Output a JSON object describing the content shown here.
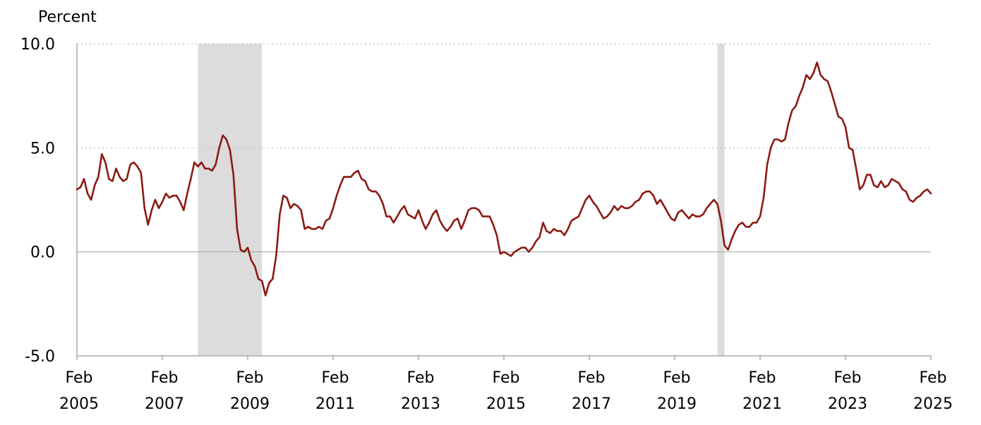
{
  "chart_data": {
    "type": "line",
    "ylabel": "Percent",
    "ylim": [
      -5.0,
      10.0
    ],
    "yticks": [
      {
        "value": 10.0,
        "label": "10.0"
      },
      {
        "value": 5.0,
        "label": "5.0"
      },
      {
        "value": 0.0,
        "label": "0.0"
      },
      {
        "value": -5.0,
        "label": "-5.0"
      }
    ],
    "xlim": [
      "2005-02",
      "2025-02"
    ],
    "xticks": [
      {
        "date": "2005-02",
        "month": "Feb",
        "year": "2005"
      },
      {
        "date": "2007-02",
        "month": "Feb",
        "year": "2007"
      },
      {
        "date": "2009-02",
        "month": "Feb",
        "year": "2009"
      },
      {
        "date": "2011-02",
        "month": "Feb",
        "year": "2011"
      },
      {
        "date": "2013-02",
        "month": "Feb",
        "year": "2013"
      },
      {
        "date": "2015-02",
        "month": "Feb",
        "year": "2015"
      },
      {
        "date": "2017-02",
        "month": "Feb",
        "year": "2017"
      },
      {
        "date": "2019-02",
        "month": "Feb",
        "year": "2019"
      },
      {
        "date": "2021-02",
        "month": "Feb",
        "year": "2021"
      },
      {
        "date": "2023-02",
        "month": "Feb",
        "year": "2023"
      },
      {
        "date": "2025-02",
        "month": "Feb",
        "year": "2025"
      }
    ],
    "grid": true,
    "recessions": [
      {
        "start": "2007-12",
        "end": "2009-06"
      },
      {
        "start": "2020-02",
        "end": "2020-04"
      }
    ],
    "colors": {
      "line": "#8b1a12",
      "recession": "#dcdcdc",
      "grid": "#c8c8c8"
    },
    "series": [
      {
        "x": [
          "2005-02",
          "2005-03",
          "2005-04",
          "2005-05",
          "2005-06",
          "2005-07",
          "2005-08",
          "2005-09",
          "2005-10",
          "2005-11",
          "2005-12",
          "2006-01",
          "2006-02",
          "2006-03",
          "2006-04",
          "2006-05",
          "2006-06",
          "2006-07",
          "2006-08",
          "2006-09",
          "2006-10",
          "2006-11",
          "2006-12",
          "2007-01",
          "2007-02",
          "2007-03",
          "2007-04",
          "2007-05",
          "2007-06",
          "2007-07",
          "2007-08",
          "2007-09",
          "2007-10",
          "2007-11",
          "2007-12",
          "2008-01",
          "2008-02",
          "2008-03",
          "2008-04",
          "2008-05",
          "2008-06",
          "2008-07",
          "2008-08",
          "2008-09",
          "2008-10",
          "2008-11",
          "2008-12",
          "2009-01",
          "2009-02",
          "2009-03",
          "2009-04",
          "2009-05",
          "2009-06",
          "2009-07",
          "2009-08",
          "2009-09",
          "2009-10",
          "2009-11",
          "2009-12",
          "2010-01",
          "2010-02",
          "2010-03",
          "2010-04",
          "2010-05",
          "2010-06",
          "2010-07",
          "2010-08",
          "2010-09",
          "2010-10",
          "2010-11",
          "2010-12",
          "2011-01",
          "2011-02",
          "2011-03",
          "2011-04",
          "2011-05",
          "2011-06",
          "2011-07",
          "2011-08",
          "2011-09",
          "2011-10",
          "2011-11",
          "2011-12",
          "2012-01",
          "2012-02",
          "2012-03",
          "2012-04",
          "2012-05",
          "2012-06",
          "2012-07",
          "2012-08",
          "2012-09",
          "2012-10",
          "2012-11",
          "2012-12",
          "2013-01",
          "2013-02",
          "2013-03",
          "2013-04",
          "2013-05",
          "2013-06",
          "2013-07",
          "2013-08",
          "2013-09",
          "2013-10",
          "2013-11",
          "2013-12",
          "2014-01",
          "2014-02",
          "2014-03",
          "2014-04",
          "2014-05",
          "2014-06",
          "2014-07",
          "2014-08",
          "2014-09",
          "2014-10",
          "2014-11",
          "2014-12",
          "2015-01",
          "2015-02",
          "2015-03",
          "2015-04",
          "2015-05",
          "2015-06",
          "2015-07",
          "2015-08",
          "2015-09",
          "2015-10",
          "2015-11",
          "2015-12",
          "2016-01",
          "2016-02",
          "2016-03",
          "2016-04",
          "2016-05",
          "2016-06",
          "2016-07",
          "2016-08",
          "2016-09",
          "2016-10",
          "2016-11",
          "2016-12",
          "2017-01",
          "2017-02",
          "2017-03",
          "2017-04",
          "2017-05",
          "2017-06",
          "2017-07",
          "2017-08",
          "2017-09",
          "2017-10",
          "2017-11",
          "2017-12",
          "2018-01",
          "2018-02",
          "2018-03",
          "2018-04",
          "2018-05",
          "2018-06",
          "2018-07",
          "2018-08",
          "2018-09",
          "2018-10",
          "2018-11",
          "2018-12",
          "2019-01",
          "2019-02",
          "2019-03",
          "2019-04",
          "2019-05",
          "2019-06",
          "2019-07",
          "2019-08",
          "2019-09",
          "2019-10",
          "2019-11",
          "2019-12",
          "2020-01",
          "2020-02",
          "2020-03",
          "2020-04",
          "2020-05",
          "2020-06",
          "2020-07",
          "2020-08",
          "2020-09",
          "2020-10",
          "2020-11",
          "2020-12",
          "2021-01",
          "2021-02",
          "2021-03",
          "2021-04",
          "2021-05",
          "2021-06",
          "2021-07",
          "2021-08",
          "2021-09",
          "2021-10",
          "2021-11",
          "2021-12",
          "2022-01",
          "2022-02",
          "2022-03",
          "2022-04",
          "2022-05",
          "2022-06",
          "2022-07",
          "2022-08",
          "2022-09",
          "2022-10",
          "2022-11",
          "2022-12",
          "2023-01",
          "2023-02",
          "2023-03",
          "2023-04",
          "2023-05",
          "2023-06",
          "2023-07",
          "2023-08",
          "2023-09",
          "2023-10",
          "2023-11",
          "2023-12",
          "2024-01",
          "2024-02",
          "2024-03",
          "2024-04",
          "2024-05",
          "2024-06",
          "2024-07",
          "2024-08",
          "2024-09",
          "2024-10",
          "2024-11",
          "2024-12",
          "2025-01",
          "2025-02"
        ],
        "values": [
          3.0,
          3.1,
          3.5,
          2.8,
          2.5,
          3.2,
          3.6,
          4.7,
          4.3,
          3.5,
          3.4,
          4.0,
          3.6,
          3.4,
          3.5,
          4.2,
          4.3,
          4.1,
          3.8,
          2.1,
          1.3,
          2.0,
          2.5,
          2.1,
          2.4,
          2.8,
          2.6,
          2.7,
          2.7,
          2.4,
          2.0,
          2.8,
          3.5,
          4.3,
          4.1,
          4.3,
          4.0,
          4.0,
          3.9,
          4.2,
          5.0,
          5.6,
          5.4,
          4.9,
          3.7,
          1.1,
          0.1,
          0.0,
          0.2,
          -0.4,
          -0.7,
          -1.3,
          -1.4,
          -2.1,
          -1.5,
          -1.3,
          -0.2,
          1.8,
          2.7,
          2.6,
          2.1,
          2.3,
          2.2,
          2.0,
          1.1,
          1.2,
          1.1,
          1.1,
          1.2,
          1.1,
          1.5,
          1.6,
          2.1,
          2.7,
          3.2,
          3.6,
          3.6,
          3.6,
          3.8,
          3.9,
          3.5,
          3.4,
          3.0,
          2.9,
          2.9,
          2.7,
          2.3,
          1.7,
          1.7,
          1.4,
          1.7,
          2.0,
          2.2,
          1.8,
          1.7,
          1.6,
          2.0,
          1.5,
          1.1,
          1.4,
          1.8,
          2.0,
          1.5,
          1.2,
          1.0,
          1.2,
          1.5,
          1.6,
          1.1,
          1.5,
          2.0,
          2.1,
          2.1,
          2.0,
          1.7,
          1.7,
          1.7,
          1.3,
          0.8,
          -0.1,
          0.0,
          -0.1,
          -0.2,
          0.0,
          0.1,
          0.2,
          0.2,
          0.0,
          0.2,
          0.5,
          0.7,
          1.4,
          1.0,
          0.9,
          1.1,
          1.0,
          1.0,
          0.8,
          1.1,
          1.5,
          1.6,
          1.7,
          2.1,
          2.5,
          2.7,
          2.4,
          2.2,
          1.9,
          1.6,
          1.7,
          1.9,
          2.2,
          2.0,
          2.2,
          2.1,
          2.1,
          2.2,
          2.4,
          2.5,
          2.8,
          2.9,
          2.9,
          2.7,
          2.3,
          2.5,
          2.2,
          1.9,
          1.6,
          1.5,
          1.9,
          2.0,
          1.8,
          1.6,
          1.8,
          1.7,
          1.7,
          1.8,
          2.1,
          2.3,
          2.5,
          2.3,
          1.5,
          0.3,
          0.1,
          0.6,
          1.0,
          1.3,
          1.4,
          1.2,
          1.2,
          1.4,
          1.4,
          1.7,
          2.6,
          4.2,
          5.0,
          5.4,
          5.4,
          5.3,
          5.4,
          6.2,
          6.8,
          7.0,
          7.5,
          7.9,
          8.5,
          8.3,
          8.6,
          9.1,
          8.5,
          8.3,
          8.2,
          7.7,
          7.1,
          6.5,
          6.4,
          6.0,
          5.0,
          4.9,
          4.0,
          3.0,
          3.2,
          3.7,
          3.7,
          3.2,
          3.1,
          3.4,
          3.1,
          3.2,
          3.5,
          3.4,
          3.3,
          3.0,
          2.9,
          2.5,
          2.4,
          2.6,
          2.7,
          2.9,
          3.0,
          2.8
        ]
      }
    ]
  }
}
